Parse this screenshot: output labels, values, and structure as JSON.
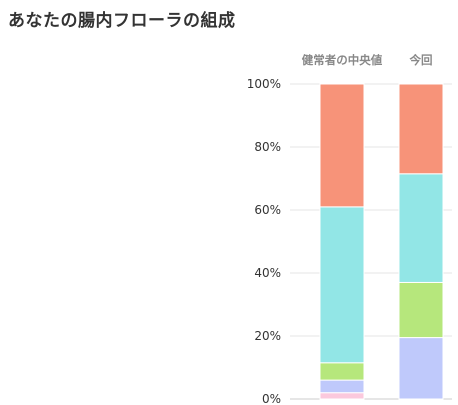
{
  "page": {
    "title": "あなたの腸内フローラの組成"
  },
  "chart_data": {
    "type": "bar",
    "stacked": true,
    "title": "あなたの腸内フローラの組成",
    "xlabel": "",
    "ylabel": "",
    "categories": [
      "健常者の中央値",
      "今回"
    ],
    "ylim": [
      0,
      100
    ],
    "y_ticks": [
      "0%",
      "20%",
      "40%",
      "60%",
      "80%",
      "100%"
    ],
    "grid": true,
    "legend": "none",
    "series": [
      {
        "color": "#fbc9dd",
        "values": [
          2,
          0
        ]
      },
      {
        "color": "#bfc9fb",
        "values": [
          4,
          19.5
        ]
      },
      {
        "color": "#b6e77c",
        "values": [
          5.5,
          17.5
        ]
      },
      {
        "color": "#92e6e6",
        "values": [
          49.5,
          34.5
        ]
      },
      {
        "color": "#f79379",
        "values": [
          39,
          28.5
        ]
      }
    ]
  }
}
